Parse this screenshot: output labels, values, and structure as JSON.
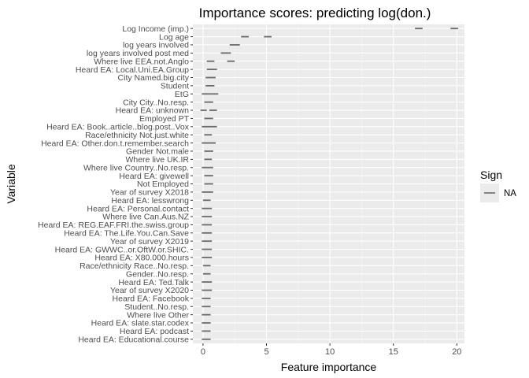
{
  "chart_data": {
    "type": "interval",
    "title": "Importance scores: predicting log(don.)",
    "xlabel": "Feature importance",
    "ylabel": "Variable",
    "xlim": [
      -0.8,
      20.6
    ],
    "xticks": [
      0,
      5,
      10,
      15,
      20
    ],
    "grid": true,
    "legend": {
      "title": "Sign",
      "position": "right",
      "entries": [
        {
          "label": "NA",
          "color": "#6b6b6b"
        }
      ]
    },
    "intervals": [
      {
        "variable": "Log Income (imp.)",
        "segments": [
          [
            16.7,
            17.3
          ],
          [
            19.5,
            20.1
          ]
        ]
      },
      {
        "variable": "Log age",
        "segments": [
          [
            3.0,
            3.6
          ],
          [
            4.8,
            5.4
          ]
        ]
      },
      {
        "variable": "log years involved",
        "segments": [
          [
            2.1,
            2.9
          ]
        ]
      },
      {
        "variable": "log years involved post med",
        "segments": [
          [
            1.4,
            2.2
          ]
        ]
      },
      {
        "variable": "Where live EEA.not.Anglo",
        "segments": [
          [
            0.3,
            0.9
          ],
          [
            1.9,
            2.5
          ]
        ]
      },
      {
        "variable": "Heard EA: Local.Uni.EA.Group",
        "segments": [
          [
            0.3,
            1.1
          ]
        ]
      },
      {
        "variable": "City Named.big.city",
        "segments": [
          [
            0.2,
            1.0
          ]
        ]
      },
      {
        "variable": "Student",
        "segments": [
          [
            0.2,
            0.9
          ]
        ]
      },
      {
        "variable": "EtG",
        "segments": [
          [
            -0.1,
            1.2
          ]
        ]
      },
      {
        "variable": "City City..No.resp.",
        "segments": [
          [
            0.1,
            0.8
          ]
        ]
      },
      {
        "variable": "Heard EA: unknown",
        "segments": [
          [
            -0.2,
            0.3
          ],
          [
            0.5,
            1.1
          ]
        ]
      },
      {
        "variable": "Employed PT",
        "segments": [
          [
            0.1,
            0.8
          ]
        ]
      },
      {
        "variable": "Heard EA: Book..article..blog.post..Vox",
        "segments": [
          [
            -0.1,
            1.1
          ]
        ]
      },
      {
        "variable": "Race/ethnicity Not.just.white",
        "segments": [
          [
            0.1,
            0.7
          ]
        ]
      },
      {
        "variable": "Heard EA: Other.don.t.remember.search",
        "segments": [
          [
            -0.1,
            1.0
          ]
        ]
      },
      {
        "variable": "Gender Not.male",
        "segments": [
          [
            0.1,
            0.8
          ]
        ]
      },
      {
        "variable": "Where live UK.IR",
        "segments": [
          [
            0.1,
            0.7
          ]
        ]
      },
      {
        "variable": "Where live Country..No.resp.",
        "segments": [
          [
            -0.1,
            0.8
          ]
        ]
      },
      {
        "variable": "Heard EA: givewell",
        "segments": [
          [
            0.1,
            0.8
          ]
        ]
      },
      {
        "variable": "Not Employed",
        "segments": [
          [
            0.1,
            0.8
          ]
        ]
      },
      {
        "variable": "Year of survey X2018",
        "segments": [
          [
            -0.1,
            0.8
          ]
        ]
      },
      {
        "variable": "Heard EA: lesswrong",
        "segments": [
          [
            0.0,
            0.6
          ]
        ]
      },
      {
        "variable": "Heard EA: Personal.contact",
        "segments": [
          [
            -0.1,
            0.7
          ]
        ]
      },
      {
        "variable": "Where live Can.Aus.NZ",
        "segments": [
          [
            -0.1,
            0.7
          ]
        ]
      },
      {
        "variable": "Heard EA: REG.EAF.FRI.the.swiss.group",
        "segments": [
          [
            -0.1,
            0.7
          ]
        ]
      },
      {
        "variable": "Heard EA: The.Life.You.Can.Save",
        "segments": [
          [
            -0.1,
            0.7
          ]
        ]
      },
      {
        "variable": "Year of survey X2019",
        "segments": [
          [
            -0.1,
            0.7
          ]
        ]
      },
      {
        "variable": "Heard EA: GWWC..or.OftW.or.SHIC.",
        "segments": [
          [
            -0.1,
            0.7
          ]
        ]
      },
      {
        "variable": "Heard EA: X80.000.hours",
        "segments": [
          [
            -0.1,
            0.7
          ]
        ]
      },
      {
        "variable": "Race/ethnicity Race..No.resp.",
        "segments": [
          [
            0.0,
            0.6
          ]
        ]
      },
      {
        "variable": "Gender..No.resp.",
        "segments": [
          [
            0.0,
            0.6
          ]
        ]
      },
      {
        "variable": "Heard EA: Ted.Talk",
        "segments": [
          [
            -0.1,
            0.7
          ]
        ]
      },
      {
        "variable": "Year of survey X2020",
        "segments": [
          [
            -0.1,
            0.7
          ]
        ]
      },
      {
        "variable": "Heard EA: Facebook",
        "segments": [
          [
            -0.1,
            0.6
          ]
        ]
      },
      {
        "variable": "Student..No.resp.",
        "segments": [
          [
            -0.1,
            0.6
          ]
        ]
      },
      {
        "variable": "Where live Other",
        "segments": [
          [
            -0.1,
            0.6
          ]
        ]
      },
      {
        "variable": "Heard EA: slate.star.codex",
        "segments": [
          [
            -0.1,
            0.6
          ]
        ]
      },
      {
        "variable": "Heard EA: podcast",
        "segments": [
          [
            -0.1,
            0.6
          ]
        ]
      },
      {
        "variable": "Heard EA: Educational.course",
        "segments": [
          [
            -0.1,
            0.6
          ]
        ]
      }
    ]
  }
}
